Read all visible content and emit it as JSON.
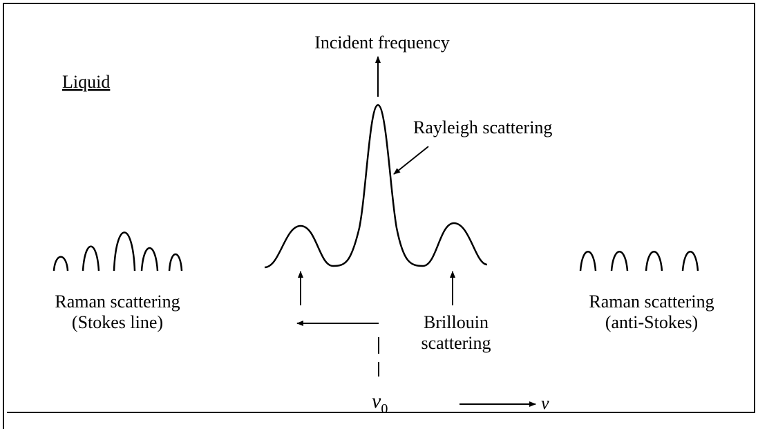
{
  "labels": {
    "incident": "Incident frequency",
    "phase": "Liquid",
    "rayleigh": "Rayleigh scattering",
    "stokes": {
      "line1": "Raman scattering",
      "line2": "(Stokes line)"
    },
    "brillouin": {
      "line1": "Brillouin",
      "line2": "scattering"
    },
    "anti_stokes": {
      "line1": "Raman scattering",
      "line2": "(anti-Stokes)"
    },
    "nu0": {
      "symbol": "ν",
      "subscript": "0"
    },
    "nu_axis": "ν"
  }
}
